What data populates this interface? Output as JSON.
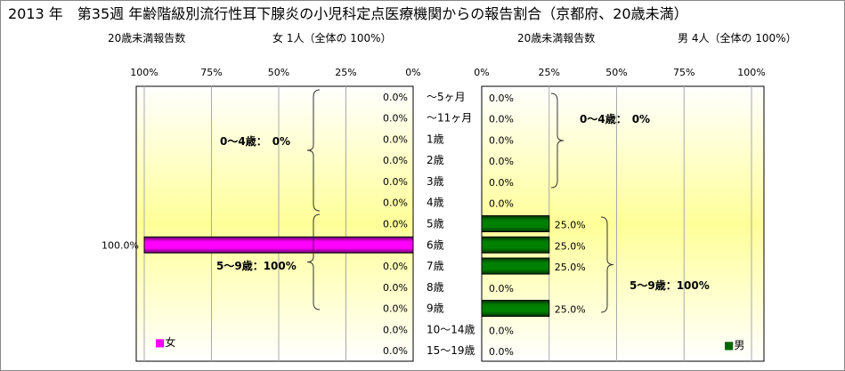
{
  "chart_data": {
    "type": "bar",
    "title": "2013 年　第35週 年齢階級別流行性耳下腺炎の小児科定点医療機関からの報告割合（京都府、20歳未満）",
    "categories": [
      "～5ヶ月",
      "～11ヶ月",
      "1歳",
      "2歳",
      "3歳",
      "4歳",
      "5歳",
      "6歳",
      "7歳",
      "8歳",
      "9歳",
      "10～14歳",
      "15～19歳"
    ],
    "xticks": [
      "0%",
      "25%",
      "50%",
      "75%",
      "100%"
    ],
    "xlim": [
      0,
      100
    ],
    "series": [
      {
        "name": "女",
        "color": "#ff00ff",
        "subtitle_label": "20歳未満報告数",
        "subtitle_count": "女 1人（全体の 100%）",
        "values": [
          0,
          0,
          0,
          0,
          0,
          0,
          0,
          100,
          0,
          0,
          0,
          0,
          0
        ],
        "labels": [
          "0.0%",
          "0.0%",
          "0.0%",
          "0.0%",
          "0.0%",
          "0.0%",
          "0.0%",
          "100.0%",
          "0.0%",
          "0.0%",
          "0.0%",
          "0.0%",
          "0.0%"
        ],
        "annotations": [
          "0～4歳：　0%",
          "5～9歳：100%"
        ]
      },
      {
        "name": "男",
        "color": "#006400",
        "subtitle_label": "20歳未満報告数",
        "subtitle_count": "男 4人（全体の 100%）",
        "values": [
          0,
          0,
          0,
          0,
          0,
          0,
          25,
          25,
          25,
          0,
          25,
          0,
          0
        ],
        "labels": [
          "0.0%",
          "0.0%",
          "0.0%",
          "0.0%",
          "0.0%",
          "0.0%",
          "25.0%",
          "25.0%",
          "25.0%",
          "0.0%",
          "25.0%",
          "0.0%",
          "0.0%"
        ],
        "annotations": [
          "0～4歳：　0%",
          "5～9歳：100%"
        ]
      }
    ]
  }
}
